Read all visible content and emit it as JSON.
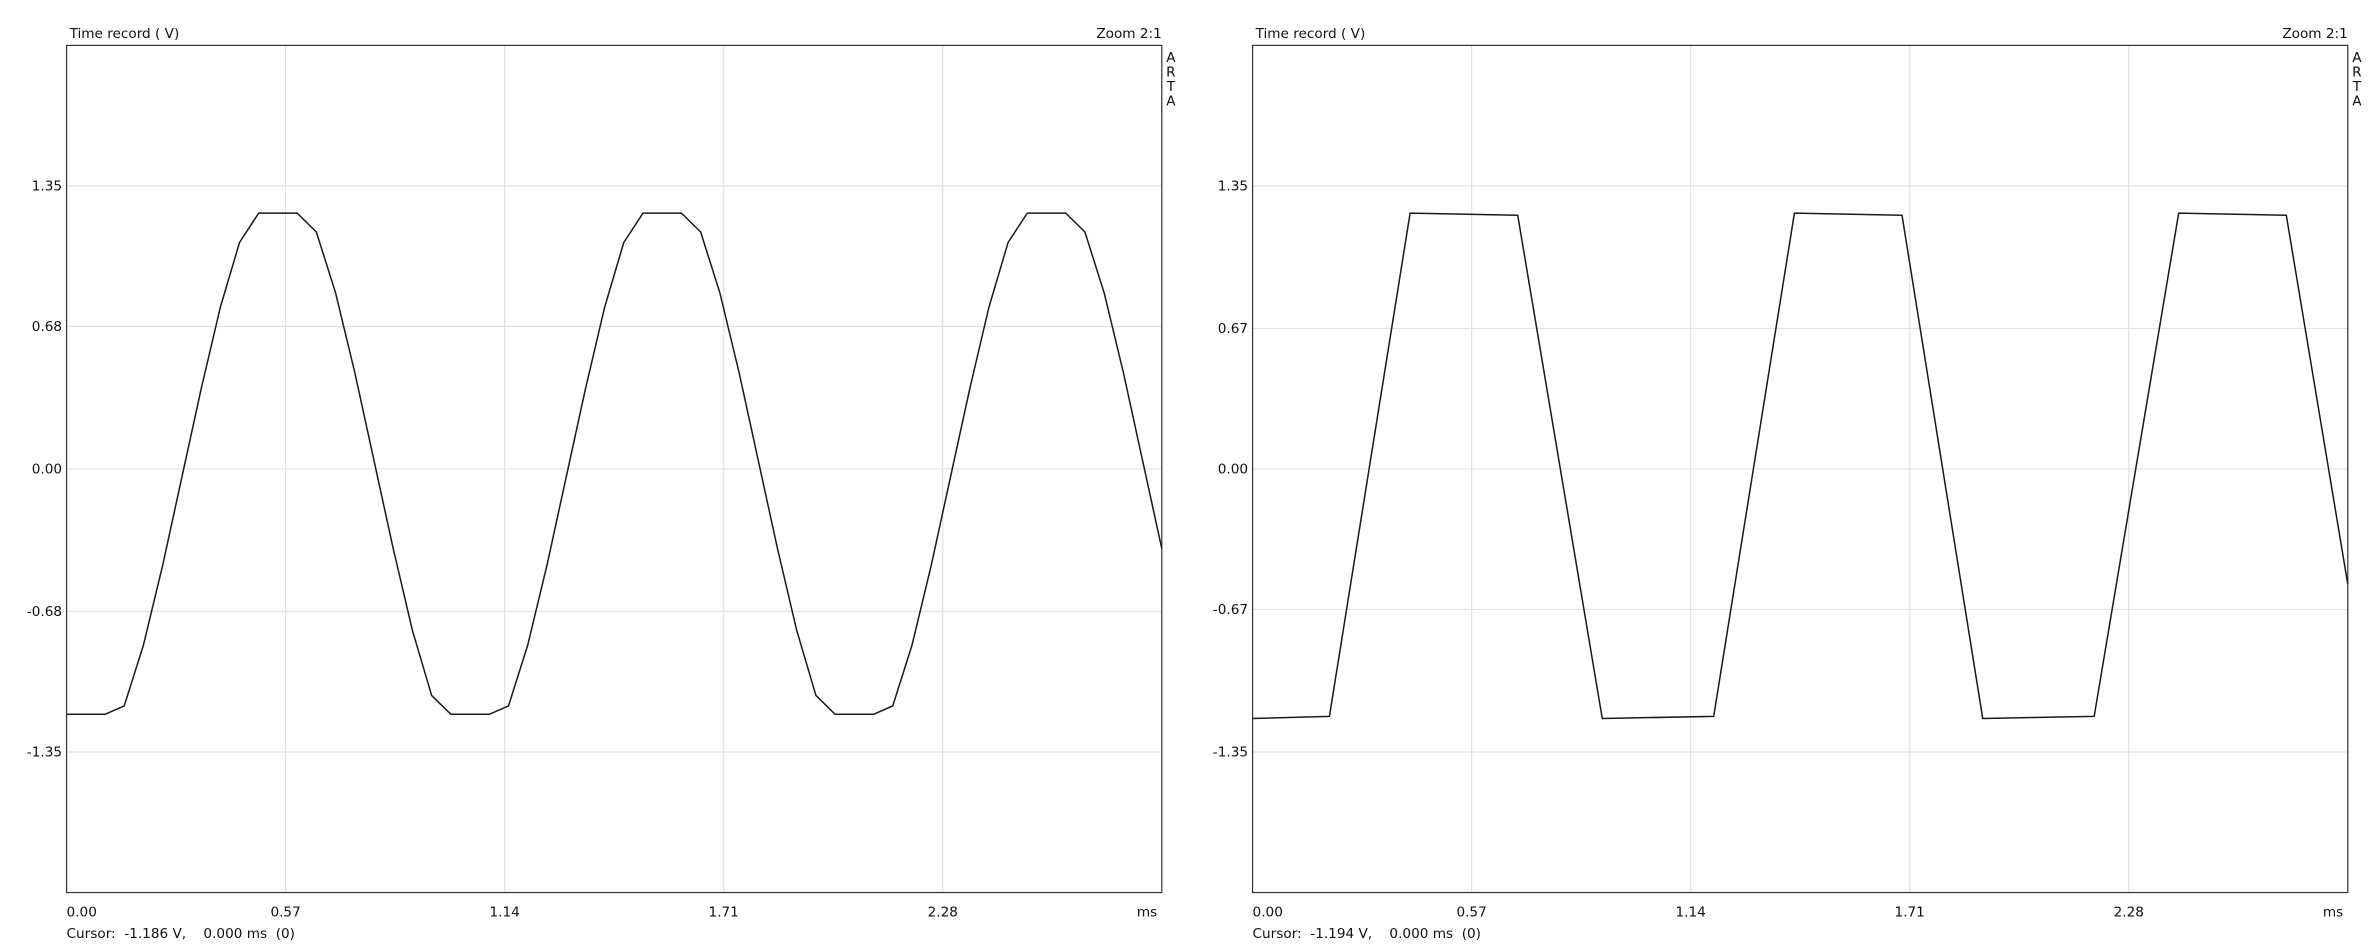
{
  "chart_data": [
    {
      "type": "line",
      "title": "Time record ( V)",
      "annotation": "Zoom 2:1",
      "brand": "ARTA",
      "cursor": "Cursor:  -1.186 V,    0.000 ms  (0)",
      "xlabel": "ms",
      "x": [
        0,
        0.05,
        0.1,
        0.15,
        0.2,
        0.25,
        0.3,
        0.35,
        0.4,
        0.45,
        0.5,
        0.55,
        0.6,
        0.65,
        0.7,
        0.75,
        0.8,
        0.85,
        0.9,
        0.95,
        1,
        1.05,
        1.1,
        1.15,
        1.2,
        1.25,
        1.3,
        1.35,
        1.4,
        1.45,
        1.5,
        1.55,
        1.6,
        1.65,
        1.7,
        1.75,
        1.8,
        1.85,
        1.9,
        1.95,
        2,
        2.05,
        2.1,
        2.15,
        2.2,
        2.25,
        2.3,
        2.35,
        2.4,
        2.45,
        2.5,
        2.55,
        2.6,
        2.65,
        2.7,
        2.75,
        2.8,
        2.85
      ],
      "values": [
        -1.17,
        -1.17,
        -1.17,
        -1.13,
        -0.84,
        -0.46,
        -0.04,
        0.38,
        0.77,
        1.08,
        1.22,
        1.22,
        1.22,
        1.13,
        0.84,
        0.46,
        0.04,
        -0.38,
        -0.77,
        -1.08,
        -1.17,
        -1.17,
        -1.17,
        -1.13,
        -0.84,
        -0.46,
        -0.04,
        0.38,
        0.77,
        1.08,
        1.22,
        1.22,
        1.22,
        1.13,
        0.84,
        0.46,
        0.04,
        -0.38,
        -0.77,
        -1.08,
        -1.17,
        -1.17,
        -1.17,
        -1.13,
        -0.84,
        -0.46,
        -0.04,
        0.38,
        0.77,
        1.08,
        1.22,
        1.22,
        1.22,
        1.13,
        0.84,
        0.46,
        0.04,
        -0.38
      ],
      "color": "#1a1a1a",
      "xlim": [
        0,
        2.85
      ],
      "ylim": [
        -2.02,
        2.02
      ],
      "xticks": [
        {
          "value": 0,
          "label": "0.00"
        },
        0.57,
        1.14,
        1.71,
        2.28
      ],
      "yticks": [
        1.35,
        0.68,
        {
          "value": 0,
          "label": "0.00"
        },
        -0.68,
        -1.35
      ],
      "grid": true
    },
    {
      "type": "line",
      "title": "Time record ( V)",
      "annotation": "Zoom 2:1",
      "brand": "ARTA",
      "cursor": "Cursor:  -1.194 V,    0.000 ms  (0)",
      "xlabel": "ms",
      "x": [
        0,
        0.2,
        0.41,
        0.69,
        0.91,
        1.2,
        1.41,
        1.69,
        1.9,
        2.19,
        2.41,
        2.69,
        2.85
      ],
      "values": [
        -1.19,
        -1.18,
        1.22,
        1.21,
        -1.19,
        -1.18,
        1.22,
        1.21,
        -1.19,
        -1.18,
        1.22,
        1.21,
        -0.55
      ],
      "color": "#1a1a1a",
      "xlim": [
        0,
        2.85
      ],
      "ylim": [
        -2.02,
        2.02
      ],
      "xticks": [
        {
          "value": 0,
          "label": "0.00"
        },
        0.57,
        1.14,
        1.71,
        2.28
      ],
      "yticks": [
        1.35,
        0.67,
        {
          "value": 0,
          "label": "0.00"
        },
        -0.67,
        -1.35
      ],
      "grid": true
    }
  ]
}
